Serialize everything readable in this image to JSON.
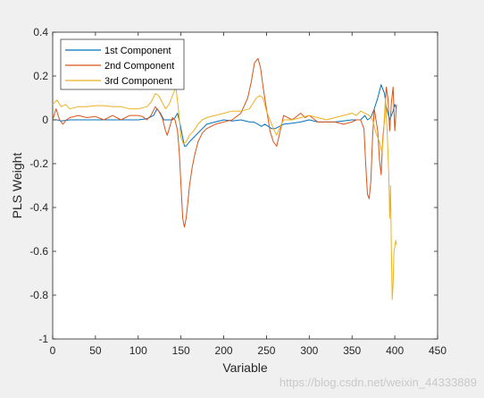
{
  "chart_data": {
    "type": "line",
    "title": "",
    "xlabel": "Variable",
    "ylabel": "PLS Weight",
    "xlim": [
      0,
      450
    ],
    "ylim": [
      -1,
      0.4
    ],
    "xticks": [
      "0",
      "50",
      "100",
      "150",
      "200",
      "250",
      "300",
      "350",
      "400",
      "450"
    ],
    "yticks": [
      "0.4",
      "0.2",
      "0",
      "-0.2",
      "-0.4",
      "-0.6",
      "-0.8",
      "-1"
    ],
    "legend_position": "top-left",
    "grid": false,
    "series": [
      {
        "name": "1st Component",
        "color": "#0072BD",
        "x": [
          0,
          5,
          10,
          20,
          40,
          60,
          80,
          100,
          110,
          118,
          122,
          126,
          130,
          133,
          136,
          140,
          143,
          146,
          149,
          152,
          154,
          156,
          160,
          165,
          170,
          175,
          180,
          190,
          200,
          210,
          220,
          230,
          235,
          240,
          244,
          248,
          252,
          256,
          260,
          265,
          270,
          280,
          290,
          300,
          310,
          320,
          330,
          340,
          350,
          360,
          365,
          368,
          372,
          376,
          380,
          384,
          386,
          388,
          390,
          392,
          394,
          396,
          398,
          400,
          402
        ],
        "values": [
          0.0,
          0.0,
          -0.005,
          0.0,
          0.0,
          0.0,
          0.0,
          0.0,
          0.005,
          0.02,
          0.05,
          0.03,
          0.0,
          0.0,
          0.0,
          0.0,
          0.01,
          0.03,
          -0.02,
          -0.08,
          -0.12,
          -0.12,
          -0.1,
          -0.08,
          -0.06,
          -0.04,
          -0.02,
          -0.01,
          0.0,
          -0.005,
          0.0,
          -0.01,
          -0.01,
          -0.02,
          -0.03,
          -0.02,
          -0.03,
          -0.04,
          -0.04,
          -0.03,
          -0.02,
          -0.015,
          -0.01,
          0.0,
          -0.01,
          -0.01,
          -0.01,
          -0.005,
          0.0,
          0.0,
          0.02,
          0.0,
          0.01,
          0.05,
          0.1,
          0.16,
          0.14,
          0.12,
          0.06,
          0.03,
          0.0,
          0.02,
          0.04,
          0.07,
          0.05
        ]
      },
      {
        "name": "2nd Component",
        "color": "#D95319",
        "x": [
          0,
          4,
          8,
          12,
          16,
          20,
          30,
          40,
          50,
          60,
          70,
          80,
          90,
          100,
          105,
          110,
          115,
          120,
          124,
          128,
          132,
          134,
          137,
          140,
          143,
          146,
          148,
          150,
          152,
          154,
          156,
          158,
          160,
          163,
          166,
          170,
          175,
          180,
          190,
          200,
          210,
          220,
          228,
          232,
          236,
          240,
          243,
          246,
          250,
          254,
          258,
          262,
          266,
          270,
          280,
          290,
          295,
          300,
          310,
          320,
          330,
          340,
          350,
          355,
          360,
          364,
          366,
          368,
          370,
          372,
          374,
          376,
          378,
          380,
          382,
          384,
          386,
          388,
          390,
          392,
          394,
          396,
          398,
          400,
          402
        ],
        "values": [
          0.0,
          0.05,
          0.0,
          -0.02,
          0.0,
          0.01,
          0.02,
          0.01,
          0.015,
          0.0,
          0.02,
          0.0,
          0.02,
          0.02,
          0.015,
          0.0,
          0.02,
          0.06,
          0.04,
          0.01,
          -0.05,
          -0.07,
          -0.03,
          0.01,
          0.0,
          -0.05,
          -0.15,
          -0.3,
          -0.45,
          -0.49,
          -0.45,
          -0.38,
          -0.3,
          -0.22,
          -0.16,
          -0.1,
          -0.06,
          -0.04,
          -0.02,
          -0.01,
          0.0,
          0.03,
          0.1,
          0.17,
          0.26,
          0.28,
          0.24,
          0.15,
          0.05,
          -0.05,
          -0.1,
          -0.12,
          -0.05,
          0.02,
          0.0,
          0.03,
          0.01,
          0.02,
          -0.01,
          -0.01,
          -0.01,
          -0.02,
          -0.01,
          0.0,
          0.0,
          -0.04,
          -0.2,
          -0.34,
          -0.36,
          -0.28,
          -0.08,
          0.05,
          0.0,
          -0.05,
          -0.18,
          -0.25,
          -0.08,
          0.0,
          0.15,
          0.1,
          -0.05,
          0.08,
          0.15,
          -0.05,
          0.07
        ]
      },
      {
        "name": "3rd Component",
        "color": "#EDB120",
        "x": [
          0,
          5,
          10,
          15,
          20,
          30,
          40,
          50,
          60,
          70,
          80,
          90,
          100,
          110,
          115,
          120,
          124,
          128,
          132,
          136,
          140,
          144,
          147,
          150,
          153,
          156,
          160,
          165,
          170,
          175,
          180,
          190,
          200,
          210,
          220,
          230,
          235,
          238,
          242,
          246,
          250,
          254,
          258,
          262,
          266,
          270,
          280,
          290,
          300,
          310,
          320,
          330,
          340,
          350,
          355,
          360,
          365,
          370,
          374,
          378,
          382,
          385,
          387,
          389,
          391,
          393,
          394,
          395,
          396,
          397,
          398,
          399,
          400,
          401,
          402
        ],
        "values": [
          0.07,
          0.09,
          0.06,
          0.07,
          0.05,
          0.06,
          0.06,
          0.065,
          0.065,
          0.06,
          0.06,
          0.05,
          0.05,
          0.06,
          0.08,
          0.12,
          0.11,
          0.08,
          0.05,
          0.07,
          0.11,
          0.15,
          0.05,
          -0.08,
          -0.11,
          -0.1,
          -0.07,
          -0.05,
          -0.02,
          0.0,
          0.01,
          0.02,
          0.03,
          0.04,
          0.04,
          0.05,
          0.08,
          0.1,
          0.11,
          0.1,
          0.04,
          0.0,
          -0.04,
          -0.07,
          -0.03,
          0.0,
          0.0,
          0.01,
          0.02,
          0.01,
          0.0,
          0.01,
          0.02,
          0.03,
          0.02,
          0.04,
          0.03,
          0.02,
          0.0,
          -0.06,
          -0.1,
          -0.15,
          -0.05,
          0.1,
          -0.05,
          -0.25,
          -0.45,
          -0.3,
          -0.6,
          -0.82,
          -0.75,
          -0.6,
          -0.58,
          -0.55,
          -0.57
        ]
      }
    ]
  },
  "watermark": "https://blog.csdn.net/weixin_44333889"
}
